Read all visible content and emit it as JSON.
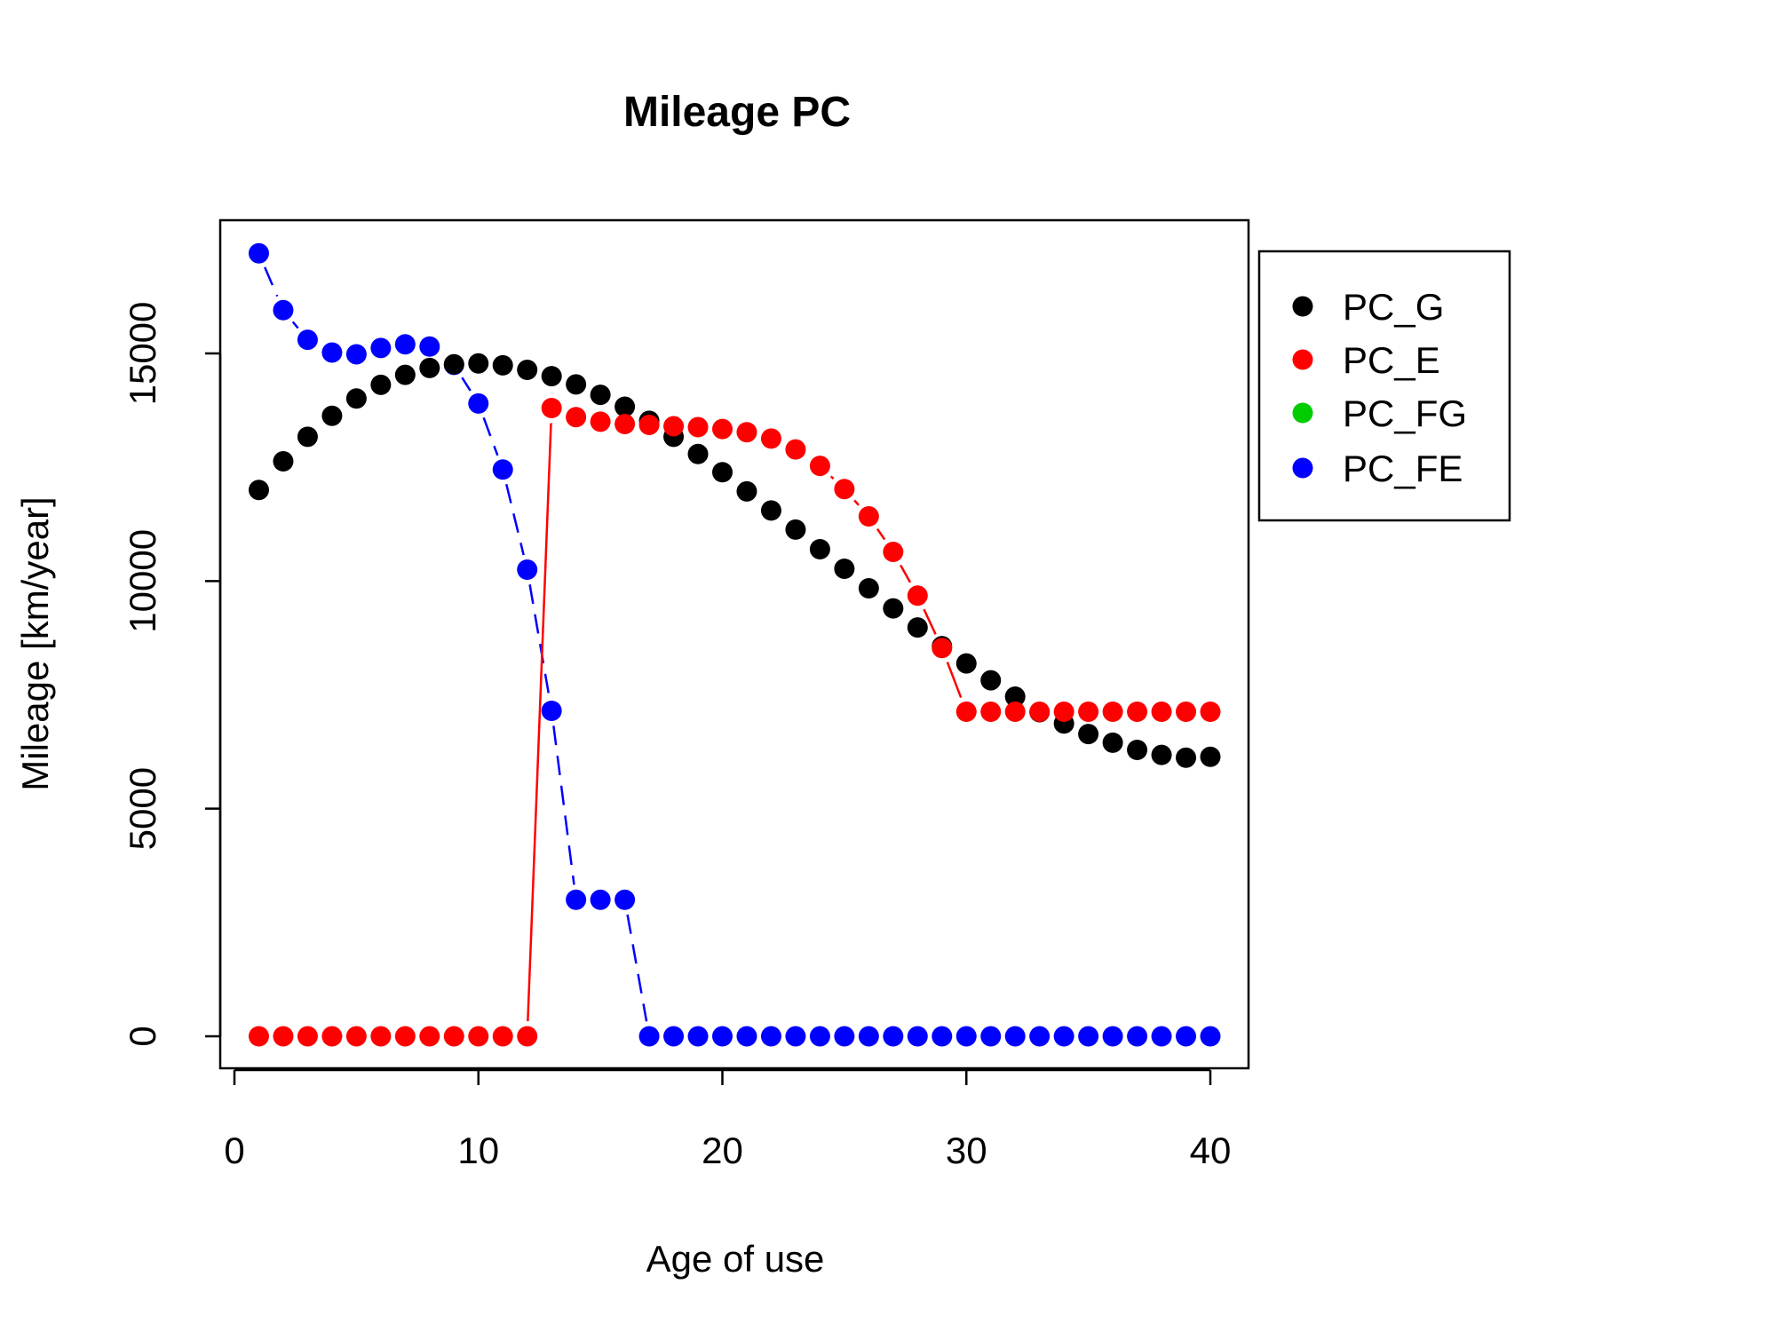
{
  "chart_data": {
    "type": "scatter",
    "title": "Mileage PC",
    "xlabel": "Age of use",
    "ylabel": "Mileage [km/year]",
    "xlim": [
      0,
      40
    ],
    "ylim": [
      0,
      17500
    ],
    "xticks": [
      0,
      10,
      20,
      30,
      40
    ],
    "yticks": [
      0,
      5000,
      10000,
      15000
    ],
    "grid": false,
    "legend_placement": "top-right-outside",
    "x": [
      1,
      2,
      3,
      4,
      5,
      6,
      7,
      8,
      9,
      10,
      11,
      12,
      13,
      14,
      15,
      16,
      17,
      18,
      19,
      20,
      21,
      22,
      23,
      24,
      25,
      26,
      27,
      28,
      29,
      30,
      31,
      32,
      33,
      34,
      35,
      36,
      37,
      38,
      39,
      40
    ],
    "series": [
      {
        "name": "PC_G",
        "color": "#000000",
        "line": "none",
        "values": [
          12000,
          12630,
          13170,
          13630,
          14010,
          14310,
          14530,
          14680,
          14760,
          14780,
          14740,
          14640,
          14500,
          14320,
          14090,
          13830,
          13520,
          13170,
          12790,
          12390,
          11970,
          11550,
          11130,
          10700,
          10270,
          9840,
          9400,
          8980,
          8570,
          8190,
          7820,
          7460,
          7120,
          6870,
          6640,
          6450,
          6290,
          6180,
          6120,
          6140
        ]
      },
      {
        "name": "PC_E",
        "color": "#ff0000",
        "line": "solid",
        "values": [
          0,
          0,
          0,
          0,
          0,
          0,
          0,
          0,
          0,
          0,
          0,
          0,
          13800,
          13600,
          13500,
          13450,
          13430,
          13400,
          13380,
          13340,
          13270,
          13130,
          12890,
          12530,
          12020,
          11420,
          10640,
          9680,
          8530,
          7130,
          7130,
          7130,
          7130,
          7130,
          7130,
          7130,
          7130,
          7130,
          7130,
          7130
        ]
      },
      {
        "name": "PC_FG",
        "color": "#00cd00",
        "line": "none",
        "values": []
      },
      {
        "name": "PC_FE",
        "color": "#0000ff",
        "line": "dashed",
        "values": [
          17200,
          15950,
          15300,
          15020,
          14980,
          15120,
          15200,
          15150,
          14750,
          13900,
          12450,
          10250,
          7150,
          3000,
          3000,
          3000,
          0,
          0,
          0,
          0,
          0,
          0,
          0,
          0,
          0,
          0,
          0,
          0,
          0,
          0,
          0,
          0,
          0,
          0,
          0,
          0,
          0,
          0,
          0,
          0
        ]
      }
    ]
  }
}
